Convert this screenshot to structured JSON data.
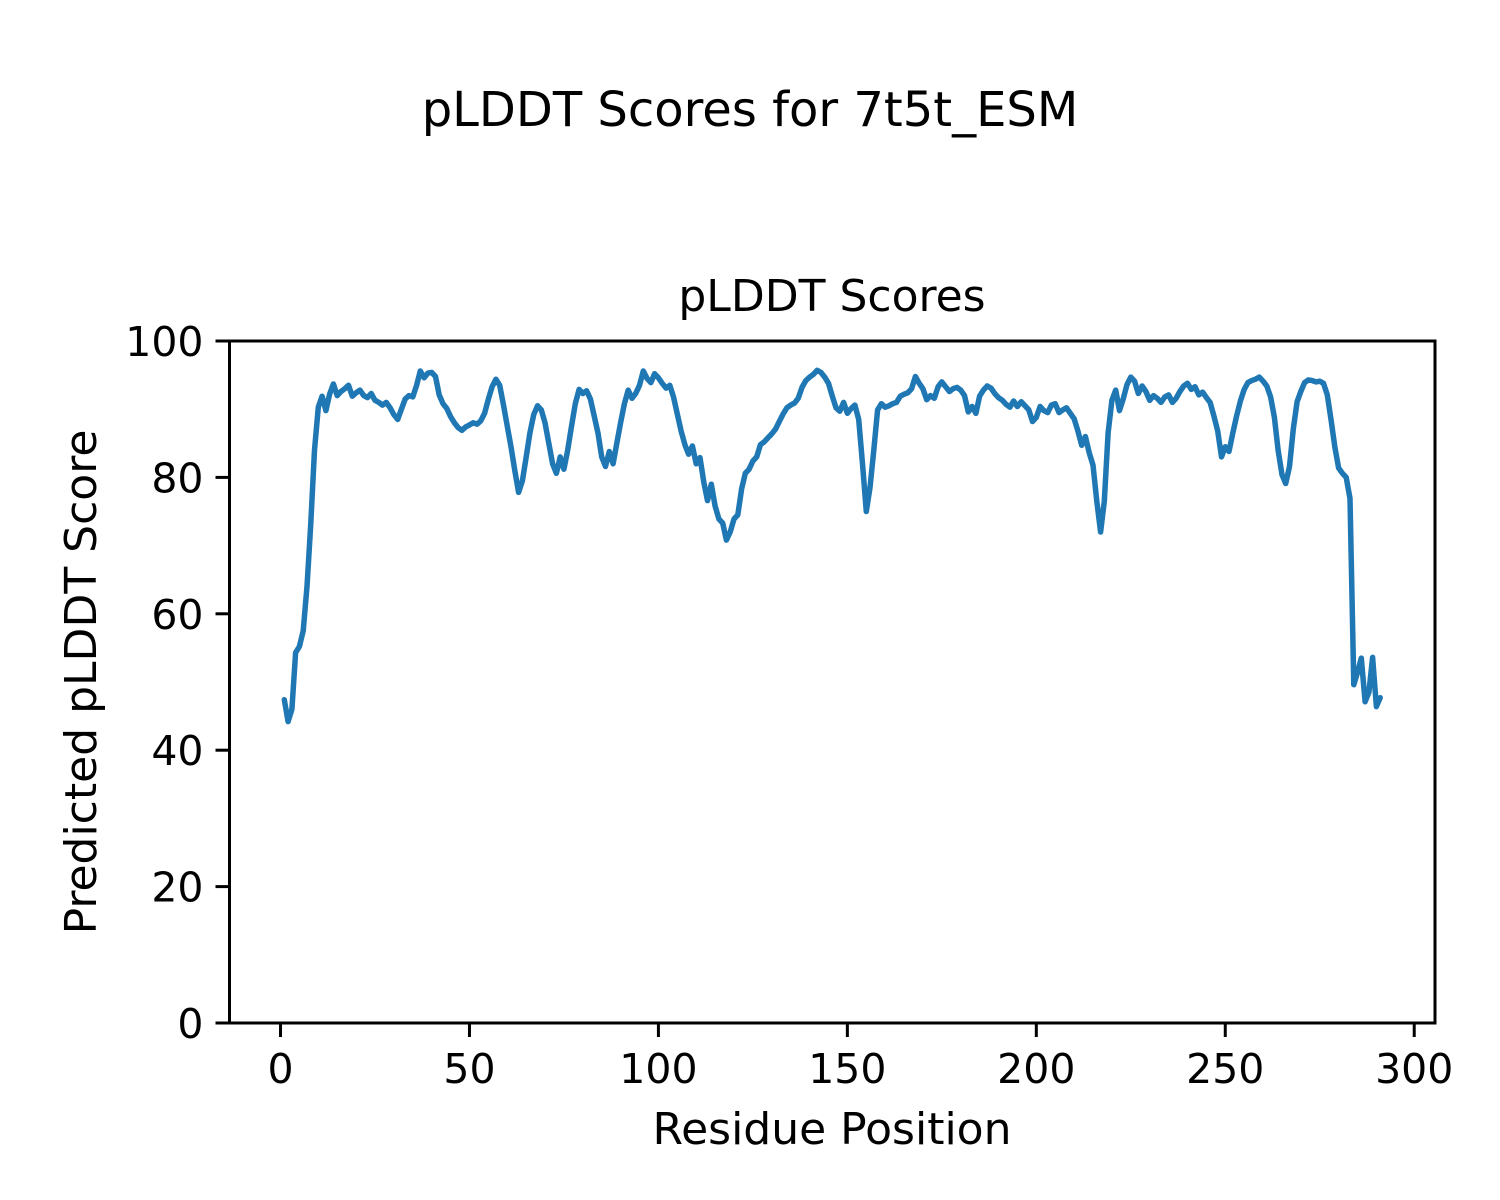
{
  "figure": {
    "suptitle": "pLDDT Scores for 7t5t_ESM",
    "background_color": "#ffffff",
    "text_color": "#000000"
  },
  "chart_data": {
    "type": "line",
    "title": "pLDDT Scores",
    "xlabel": "Residue Position",
    "ylabel": "Predicted pLDDT Score",
    "xlim": [
      -13.5,
      305.5
    ],
    "ylim": [
      0,
      100
    ],
    "x_ticks": [
      0,
      50,
      100,
      150,
      200,
      250,
      300
    ],
    "y_ticks": [
      0,
      20,
      40,
      60,
      80,
      100
    ],
    "grid": false,
    "legend": null,
    "line_color": "#1f77b4",
    "line_width": 5.5,
    "spine_color": "#000000",
    "series": [
      {
        "name": "pLDDT",
        "x_start": 1,
        "x_step": 1,
        "values": [
          47.4,
          44.2,
          46.0,
          54.3,
          55.2,
          57.5,
          64.0,
          73.0,
          84.0,
          90.3,
          91.9,
          89.8,
          92.2,
          93.7,
          92.0,
          92.6,
          93.0,
          93.5,
          91.9,
          92.4,
          92.8,
          92.0,
          91.7,
          92.3,
          91.3,
          91.0,
          90.6,
          91.0,
          90.2,
          89.2,
          88.5,
          90.0,
          91.5,
          92.0,
          91.8,
          93.5,
          95.6,
          94.6,
          95.3,
          95.4,
          94.8,
          92.1,
          90.8,
          90.1,
          88.9,
          88.0,
          87.3,
          86.9,
          87.4,
          87.7,
          88.0,
          87.8,
          88.3,
          89.4,
          91.5,
          93.3,
          94.4,
          93.5,
          90.6,
          87.5,
          84.5,
          81.0,
          77.8,
          79.5,
          83.0,
          86.5,
          89.2,
          90.5,
          89.9,
          88.0,
          85.0,
          82.0,
          80.6,
          83.0,
          81.2,
          84.0,
          87.5,
          90.8,
          92.9,
          92.3,
          92.7,
          91.5,
          89.0,
          86.5,
          83.0,
          81.6,
          83.8,
          82.0,
          85.0,
          88.0,
          90.8,
          92.8,
          91.6,
          92.3,
          93.5,
          95.6,
          94.5,
          93.9,
          95.2,
          94.6,
          93.8,
          93.1,
          93.5,
          91.8,
          89.3,
          86.8,
          84.8,
          83.4,
          84.6,
          82.0,
          82.9,
          79.3,
          76.6,
          79.0,
          75.8,
          73.9,
          73.3,
          70.8,
          72.0,
          73.9,
          74.5,
          78.3,
          80.6,
          81.2,
          82.4,
          83.0,
          84.8,
          85.2,
          85.8,
          86.4,
          87.1,
          88.2,
          89.3,
          90.2,
          90.6,
          90.9,
          91.6,
          93.2,
          94.2,
          94.7,
          95.1,
          95.7,
          95.4,
          94.7,
          93.8,
          91.9,
          90.2,
          89.7,
          91.0,
          89.4,
          90.1,
          90.6,
          88.5,
          82.0,
          75.0,
          78.5,
          84.0,
          89.9,
          90.8,
          90.3,
          90.5,
          90.8,
          91.0,
          91.9,
          92.2,
          92.4,
          93.0,
          94.8,
          93.8,
          93.0,
          91.4,
          92.0,
          91.6,
          93.3,
          94.0,
          93.3,
          92.6,
          93.0,
          93.2,
          92.8,
          92.0,
          89.6,
          90.4,
          89.4,
          91.9,
          92.8,
          93.4,
          93.1,
          92.3,
          91.7,
          91.3,
          90.7,
          90.3,
          91.2,
          90.4,
          91.1,
          90.5,
          89.9,
          88.2,
          88.8,
          90.4,
          89.8,
          89.5,
          90.6,
          90.8,
          89.5,
          89.9,
          90.2,
          89.4,
          88.6,
          86.8,
          84.7,
          86.0,
          83.6,
          81.8,
          76.5,
          72.0,
          76.5,
          86.5,
          91.3,
          92.8,
          89.8,
          91.5,
          93.6,
          94.7,
          94.1,
          92.3,
          93.4,
          92.6,
          91.3,
          92.0,
          91.6,
          91.0,
          91.8,
          92.1,
          91.0,
          91.6,
          92.6,
          93.4,
          93.8,
          92.9,
          93.3,
          92.1,
          92.5,
          91.7,
          91.0,
          89.0,
          86.8,
          83.0,
          84.5,
          83.8,
          86.5,
          89.0,
          91.2,
          92.9,
          93.9,
          94.2,
          94.4,
          94.7,
          94.1,
          93.4,
          91.8,
          88.8,
          83.9,
          80.4,
          79.1,
          81.6,
          87.1,
          91.1,
          92.6,
          93.9,
          94.3,
          94.2,
          94.0,
          94.1,
          93.8,
          92.1,
          88.4,
          84.4,
          81.4,
          80.6,
          80.0,
          76.9,
          49.6,
          51.4,
          53.5,
          47.1,
          48.5,
          53.6,
          46.4,
          47.7
        ]
      }
    ]
  }
}
